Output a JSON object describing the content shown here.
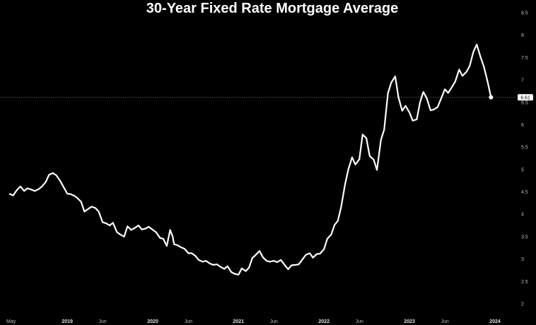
{
  "chart_data": {
    "type": "line",
    "title": "30-Year Fixed Rate Mortgage Average",
    "xlabel": "",
    "ylabel": "",
    "ylim": [
      1.75,
      8.5
    ],
    "y_ticks": [
      "2",
      "2.5",
      "3",
      "3.5",
      "4",
      "4.5",
      "5",
      "5.5",
      "6",
      "6.5",
      "7",
      "7.5",
      "8",
      "8.5"
    ],
    "x_ticks": [
      {
        "label": "May",
        "date": "2018-05-01",
        "year": false
      },
      {
        "label": "2019",
        "date": "2019-01-01",
        "year": true
      },
      {
        "label": "Jun",
        "date": "2019-06-01",
        "year": false
      },
      {
        "label": "2020",
        "date": "2020-01-01",
        "year": true
      },
      {
        "label": "Jun",
        "date": "2020-06-01",
        "year": false
      },
      {
        "label": "2021",
        "date": "2021-01-01",
        "year": true
      },
      {
        "label": "Jun",
        "date": "2021-06-01",
        "year": false
      },
      {
        "label": "2022",
        "date": "2022-01-01",
        "year": true
      },
      {
        "label": "Jun",
        "date": "2022-06-01",
        "year": false
      },
      {
        "label": "2023",
        "date": "2023-01-01",
        "year": true
      },
      {
        "label": "Jun",
        "date": "2023-06-01",
        "year": false
      },
      {
        "label": "2024",
        "date": "2024-01-01",
        "year": true
      }
    ],
    "current_value": "6.61",
    "grid": false,
    "colors": {
      "background": "#000000",
      "line": "#ffffff",
      "reference_line": "#8a8a8a"
    },
    "series": [
      {
        "x": [
          "2018-05-01",
          "2018-05-15",
          "2018-06-01",
          "2018-06-15",
          "2018-07-01",
          "2018-07-15",
          "2018-08-01",
          "2018-08-15",
          "2018-09-01",
          "2018-09-15",
          "2018-10-01",
          "2018-10-15",
          "2018-11-01",
          "2018-11-15",
          "2018-12-01",
          "2018-12-15",
          "2019-01-01",
          "2019-01-15",
          "2019-02-01",
          "2019-02-15",
          "2019-03-01",
          "2019-03-15",
          "2019-04-01",
          "2019-04-15",
          "2019-05-01",
          "2019-05-15",
          "2019-06-01",
          "2019-06-15",
          "2019-07-01",
          "2019-07-15",
          "2019-08-01",
          "2019-08-15",
          "2019-09-01",
          "2019-09-15",
          "2019-10-01",
          "2019-10-15",
          "2019-11-01",
          "2019-11-15",
          "2019-12-01",
          "2019-12-15",
          "2020-01-01",
          "2020-01-15",
          "2020-02-01",
          "2020-02-15",
          "2020-03-01",
          "2020-03-15",
          "2020-03-26",
          "2020-04-01",
          "2020-04-15",
          "2020-05-01",
          "2020-05-15",
          "2020-06-01",
          "2020-06-15",
          "2020-07-01",
          "2020-07-15",
          "2020-08-01",
          "2020-08-15",
          "2020-09-01",
          "2020-09-15",
          "2020-10-01",
          "2020-10-15",
          "2020-11-01",
          "2020-11-15",
          "2020-12-01",
          "2020-12-15",
          "2021-01-01",
          "2021-01-15",
          "2021-02-01",
          "2021-02-15",
          "2021-03-01",
          "2021-03-15",
          "2021-04-01",
          "2021-04-15",
          "2021-05-01",
          "2021-05-15",
          "2021-06-01",
          "2021-06-15",
          "2021-07-01",
          "2021-07-15",
          "2021-08-01",
          "2021-08-15",
          "2021-09-01",
          "2021-09-15",
          "2021-10-01",
          "2021-10-15",
          "2021-11-01",
          "2021-11-15",
          "2021-12-01",
          "2021-12-15",
          "2022-01-01",
          "2022-01-15",
          "2022-02-01",
          "2022-02-15",
          "2022-03-01",
          "2022-03-15",
          "2022-04-01",
          "2022-04-15",
          "2022-05-01",
          "2022-05-15",
          "2022-06-01",
          "2022-06-15",
          "2022-07-01",
          "2022-07-15",
          "2022-08-01",
          "2022-08-15",
          "2022-09-01",
          "2022-09-15",
          "2022-10-01",
          "2022-10-15",
          "2022-11-01",
          "2022-11-15",
          "2022-12-01",
          "2022-12-15",
          "2023-01-01",
          "2023-01-15",
          "2023-02-01",
          "2023-02-15",
          "2023-03-01",
          "2023-03-15",
          "2023-04-01",
          "2023-04-15",
          "2023-05-01",
          "2023-05-15",
          "2023-06-01",
          "2023-06-15",
          "2023-07-01",
          "2023-07-15",
          "2023-08-01",
          "2023-08-15",
          "2023-09-01",
          "2023-09-15",
          "2023-10-01",
          "2023-10-15",
          "2023-11-01",
          "2023-11-15",
          "2023-12-01",
          "2023-12-15"
        ],
        "values": [
          4.45,
          4.42,
          4.55,
          4.62,
          4.52,
          4.58,
          4.55,
          4.52,
          4.56,
          4.62,
          4.72,
          4.88,
          4.92,
          4.87,
          4.75,
          4.62,
          4.46,
          4.45,
          4.41,
          4.35,
          4.28,
          4.06,
          4.12,
          4.17,
          4.14,
          4.06,
          3.82,
          3.8,
          3.75,
          3.81,
          3.6,
          3.55,
          3.5,
          3.73,
          3.65,
          3.69,
          3.75,
          3.66,
          3.68,
          3.72,
          3.65,
          3.6,
          3.47,
          3.45,
          3.29,
          3.65,
          3.5,
          3.33,
          3.31,
          3.26,
          3.23,
          3.13,
          3.13,
          3.07,
          2.98,
          2.94,
          2.96,
          2.9,
          2.87,
          2.88,
          2.83,
          2.78,
          2.84,
          2.71,
          2.67,
          2.65,
          2.79,
          2.73,
          2.81,
          3.02,
          3.09,
          3.18,
          3.04,
          2.96,
          2.94,
          2.96,
          2.93,
          2.98,
          2.88,
          2.77,
          2.86,
          2.87,
          2.88,
          2.99,
          3.09,
          3.13,
          3.03,
          3.11,
          3.12,
          3.22,
          3.45,
          3.55,
          3.76,
          3.85,
          4.16,
          4.67,
          5.0,
          5.27,
          5.11,
          5.23,
          5.78,
          5.7,
          5.3,
          5.22,
          4.99,
          5.66,
          5.89,
          6.7,
          6.94,
          7.08,
          6.61,
          6.31,
          6.42,
          6.27,
          6.09,
          6.12,
          6.5,
          6.73,
          6.6,
          6.32,
          6.34,
          6.39,
          6.57,
          6.79,
          6.71,
          6.84,
          6.96,
          7.23,
          7.09,
          7.18,
          7.31,
          7.63,
          7.79,
          7.5,
          7.29,
          6.95,
          6.61
        ]
      }
    ]
  }
}
